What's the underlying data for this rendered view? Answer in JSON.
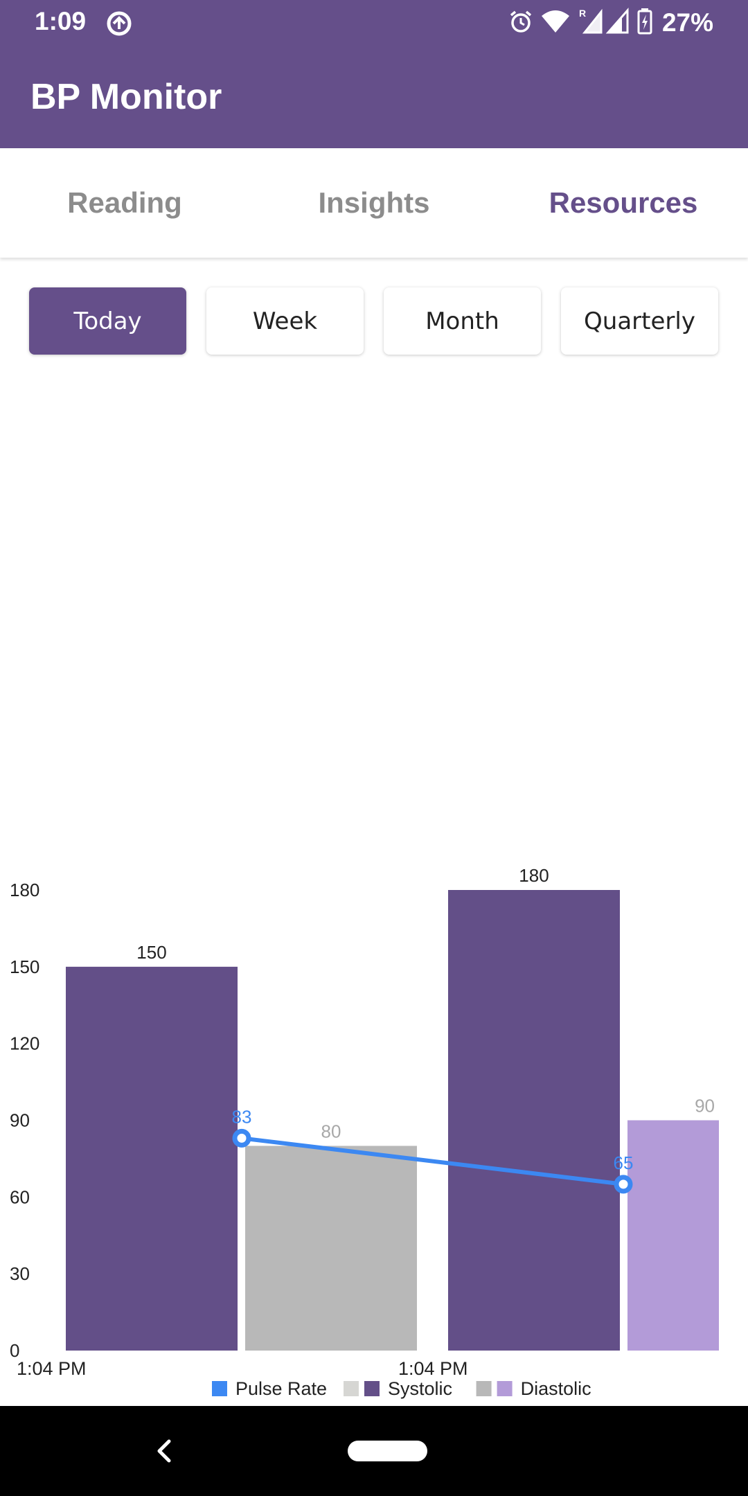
{
  "status_bar": {
    "time": "1:09",
    "battery_percent": "27%",
    "icons": [
      "sync-icon",
      "alarm-icon",
      "wifi-icon",
      "signal-icon",
      "battery-icon"
    ],
    "roaming_indicator": "R"
  },
  "app_bar": {
    "title": "BP Monitor"
  },
  "tabs": [
    {
      "label": "Reading",
      "active": false
    },
    {
      "label": "Insights",
      "active": false
    },
    {
      "label": "Resources",
      "active": true
    }
  ],
  "period_buttons": [
    {
      "label": "Today",
      "active": true
    },
    {
      "label": "Week",
      "active": false
    },
    {
      "label": "Month",
      "active": false
    },
    {
      "label": "Quarterly",
      "active": false
    }
  ],
  "colors": {
    "primary": "#654f8a",
    "systolic": "#634f88",
    "diastolic_1": "#b8b8b8",
    "diastolic_2": "#b39bd8",
    "pulse": "#3c88f2",
    "legend_placeholder": "#d6d6d3"
  },
  "chart_data": {
    "type": "bar",
    "categories": [
      "1:04 PM",
      "1:04 PM"
    ],
    "ylim": [
      0,
      180
    ],
    "yticks": [
      0,
      30,
      60,
      90,
      120,
      150,
      180
    ],
    "series": [
      {
        "name": "Systolic",
        "type": "bar",
        "values": [
          150,
          180
        ]
      },
      {
        "name": "Diastolic",
        "type": "bar",
        "values": [
          80,
          90
        ]
      },
      {
        "name": "Pulse Rate",
        "type": "line",
        "values": [
          83,
          65
        ]
      }
    ],
    "legend": {
      "placement": "bottom-center",
      "items": [
        {
          "label": "Pulse Rate",
          "swatches": [
            "#3c88f2"
          ]
        },
        {
          "label": "Systolic",
          "swatches": [
            "#d6d6d3",
            "#634f88"
          ]
        },
        {
          "label": "Diastolic",
          "swatches": [
            "#b8b8b8",
            "#b39bd8"
          ]
        }
      ]
    },
    "grid": false
  },
  "nav_bar": {
    "icons": [
      "back-icon",
      "home-pill"
    ]
  }
}
